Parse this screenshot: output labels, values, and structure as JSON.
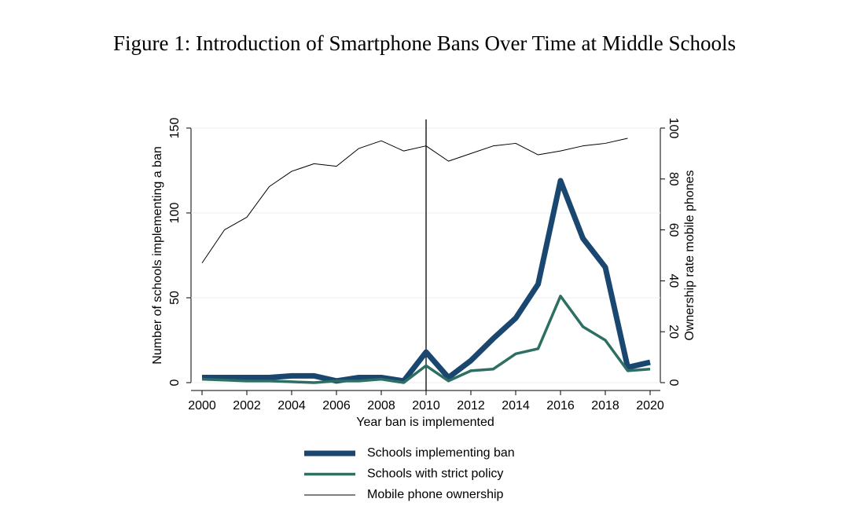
{
  "chart_data": {
    "type": "line",
    "title": "Figure 1: Introduction of Smartphone Bans Over Time at Middle Schools",
    "x_label": "Year ban is implemented",
    "y_label": "Number of schools implementing a ban",
    "y2_label": "Ownership rate mobile phones",
    "x": [
      2000,
      2001,
      2002,
      2003,
      2004,
      2005,
      2006,
      2007,
      2008,
      2009,
      2010,
      2011,
      2012,
      2013,
      2014,
      2015,
      2016,
      2017,
      2018,
      2019,
      2020
    ],
    "xlim": [
      2000,
      2020
    ],
    "xticks": [
      2000,
      2002,
      2004,
      2006,
      2008,
      2010,
      2012,
      2014,
      2016,
      2018,
      2020
    ],
    "ylim": [
      0,
      150
    ],
    "yticks": [
      0,
      50,
      100,
      150
    ],
    "y2lim": [
      0,
      100
    ],
    "y2ticks": [
      0,
      20,
      40,
      60,
      80,
      100
    ],
    "grid": true,
    "vline": 2010,
    "legend": "bottom",
    "series": [
      {
        "name": "Schools implementing ban",
        "color": "#1a476f",
        "width": 7,
        "values": [
          3,
          3,
          3,
          3,
          4,
          4,
          1,
          3,
          3,
          1,
          18,
          3,
          13,
          26,
          38,
          58,
          119,
          85,
          68,
          9,
          12
        ]
      },
      {
        "name": "Schools with strict policy",
        "color": "#2e6f63",
        "width": 3.5,
        "values": [
          2,
          1.5,
          1,
          1,
          0.5,
          0,
          1,
          1,
          2,
          0,
          10,
          1,
          7,
          8,
          17,
          20,
          51,
          33,
          25,
          7,
          8
        ]
      },
      {
        "name": "Mobile phone ownership",
        "color": "#000000",
        "width": 1,
        "axis": "y2",
        "values": [
          47,
          60,
          65,
          77,
          83,
          86,
          85,
          92,
          95,
          91,
          93,
          87,
          90,
          93,
          94,
          89.5,
          91,
          93,
          94,
          96,
          null
        ]
      }
    ]
  }
}
